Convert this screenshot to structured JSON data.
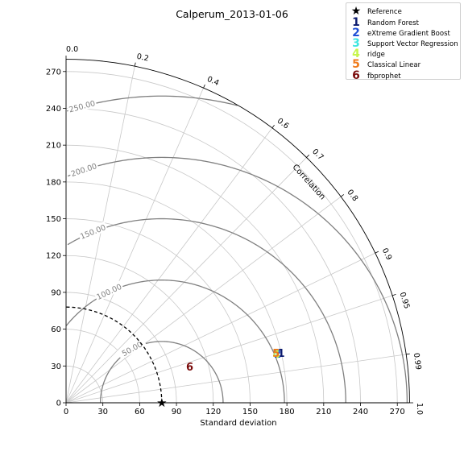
{
  "title": "Calperum_2013-01-06",
  "chart_data": {
    "type": "scatter",
    "subtype": "taylor-diagram",
    "title": "Calperum_2013-01-06",
    "xlabel": "Standard deviation",
    "arc_label": "Correlation",
    "std_range": [
      0,
      280
    ],
    "std_ticks": [
      "0",
      "30",
      "60",
      "90",
      "120",
      "150",
      "180",
      "210",
      "240",
      "270"
    ],
    "correlation_ticks": [
      "0.0",
      "0.2",
      "0.4",
      "0.6",
      "0.7",
      "0.8",
      "0.9",
      "0.95",
      "0.99",
      "1.0"
    ],
    "rms_contours": [
      "50.00",
      "100.00",
      "150.00",
      "200.00",
      "250.00"
    ],
    "reference": {
      "name": "Reference",
      "std": 78
    },
    "points": [
      {
        "marker": "1",
        "name": "Random Forest",
        "std": 180,
        "correlation": 0.974,
        "color": "#0b1a6e"
      },
      {
        "marker": "2",
        "name": "eXtreme Gradient Boost",
        "std": 177,
        "correlation": 0.974,
        "color": "#1f4fd6"
      },
      {
        "marker": "3",
        "name": "Support Vector Regression",
        "std": 176,
        "correlation": 0.973,
        "color": "#3fe6e0"
      },
      {
        "marker": "4",
        "name": "ridge",
        "std": 176,
        "correlation": 0.974,
        "color": "#c7f54a"
      },
      {
        "marker": "5",
        "name": "Classical Linear",
        "std": 176,
        "correlation": 0.973,
        "color": "#ef7a1a"
      },
      {
        "marker": "6",
        "name": "fbprophet",
        "std": 105,
        "correlation": 0.96,
        "color": "#7a0b0b"
      }
    ]
  },
  "legend": {
    "items": [
      {
        "mark": "★",
        "label": "Reference",
        "color": "#000000"
      },
      {
        "mark": "1",
        "label": "Random Forest",
        "color": "#0b1a6e"
      },
      {
        "mark": "2",
        "label": "eXtreme Gradient Boost",
        "color": "#1f4fd6"
      },
      {
        "mark": "3",
        "label": "Support Vector Regression",
        "color": "#3fe6e0"
      },
      {
        "mark": "4",
        "label": "ridge",
        "color": "#c7f54a"
      },
      {
        "mark": "5",
        "label": "Classical Linear",
        "color": "#ef7a1a"
      },
      {
        "mark": "6",
        "label": "fbprophet",
        "color": "#7a0b0b"
      }
    ]
  }
}
